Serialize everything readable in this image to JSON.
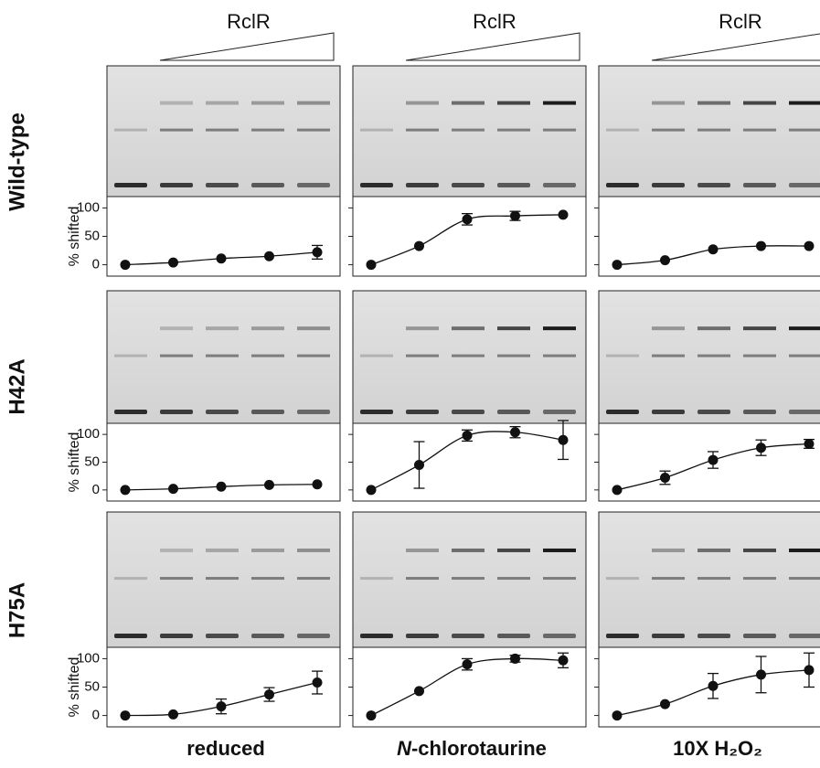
{
  "header": "RclR",
  "row_labels": [
    "Wild-type",
    "H42A",
    "H75A"
  ],
  "column_labels": [
    "reduced",
    "N-chlorotaurine",
    "10X H₂O₂"
  ],
  "chart_data": [
    {
      "type": "line",
      "ylabel": "% shifted",
      "values": [
        0,
        4,
        11,
        15,
        22
      ],
      "errors": [
        null,
        null,
        null,
        null,
        12
      ],
      "ylim": [
        -20,
        120
      ],
      "yticks": [
        0,
        50,
        100
      ]
    },
    {
      "type": "line",
      "values": [
        0,
        33,
        80,
        86,
        88
      ],
      "errors": [
        null,
        null,
        10,
        8,
        null
      ],
      "ylim": [
        -20,
        120
      ],
      "yticks": [
        0,
        50,
        100
      ]
    },
    {
      "type": "line",
      "values": [
        0,
        8,
        27,
        33,
        33
      ],
      "errors": [
        null,
        null,
        null,
        null,
        null
      ],
      "ylim": [
        -20,
        120
      ],
      "yticks": [
        0,
        50,
        100
      ]
    },
    {
      "type": "line",
      "ylabel": "% shifted",
      "values": [
        0,
        2,
        6,
        9,
        10
      ],
      "errors": [
        null,
        null,
        null,
        null,
        null
      ],
      "ylim": [
        -20,
        120
      ],
      "yticks": [
        0,
        50,
        100
      ]
    },
    {
      "type": "line",
      "values": [
        0,
        45,
        98,
        104,
        90
      ],
      "errors": [
        null,
        42,
        10,
        10,
        35
      ],
      "ylim": [
        -20,
        120
      ],
      "yticks": [
        0,
        50,
        100
      ]
    },
    {
      "type": "line",
      "values": [
        0,
        22,
        54,
        76,
        83
      ],
      "errors": [
        null,
        12,
        15,
        14,
        8
      ],
      "ylim": [
        -20,
        120
      ],
      "yticks": [
        0,
        50,
        100
      ]
    },
    {
      "type": "line",
      "ylabel": "% shifted",
      "values": [
        0,
        2,
        16,
        37,
        58
      ],
      "errors": [
        null,
        null,
        13,
        12,
        20
      ],
      "ylim": [
        -20,
        120
      ],
      "yticks": [
        0,
        50,
        100
      ]
    },
    {
      "type": "line",
      "values": [
        0,
        43,
        90,
        100,
        97
      ],
      "errors": [
        null,
        null,
        10,
        6,
        13
      ],
      "ylim": [
        -20,
        120
      ],
      "yticks": [
        0,
        50,
        100
      ]
    },
    {
      "type": "line",
      "values": [
        0,
        20,
        52,
        72,
        80
      ],
      "errors": [
        null,
        null,
        22,
        32,
        30
      ],
      "ylim": [
        -20,
        120
      ],
      "yticks": [
        0,
        50,
        100
      ]
    }
  ]
}
